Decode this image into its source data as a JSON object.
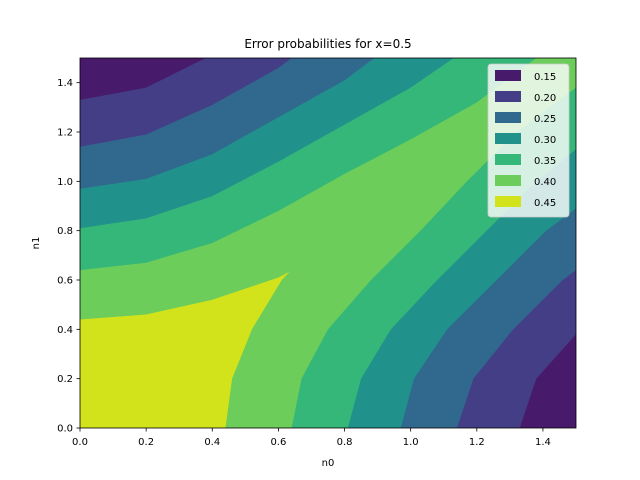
{
  "chart_data": {
    "type": "contourf",
    "title": "Error probabilities for x=0.5",
    "xlabel": "n0",
    "ylabel": "n1",
    "xlim": [
      0.0,
      1.5
    ],
    "ylim": [
      0.0,
      1.5
    ],
    "xticks": [
      "0.0",
      "0.2",
      "0.4",
      "0.6",
      "0.8",
      "1.0",
      "1.2",
      "1.4"
    ],
    "yticks": [
      "0.0",
      "0.2",
      "0.4",
      "0.6",
      "0.8",
      "1.0",
      "1.2",
      "1.4"
    ],
    "grid": false,
    "legend_position": "top-right",
    "levels": [
      {
        "label": "0.15",
        "color": "#481a6c"
      },
      {
        "label": "0.20",
        "color": "#433e85"
      },
      {
        "label": "0.25",
        "color": "#31688e"
      },
      {
        "label": "0.30",
        "color": "#21918c"
      },
      {
        "label": "0.35",
        "color": "#35b779"
      },
      {
        "label": "0.40",
        "color": "#6ccd5a"
      },
      {
        "label": "0.45",
        "color": "#d2e21b"
      }
    ],
    "contour_lines": [
      {
        "level": "0.45 boundary (upper-left)",
        "points": [
          [
            0.0,
            0.44
          ],
          [
            0.2,
            0.46
          ],
          [
            0.4,
            0.52
          ],
          [
            0.6,
            0.61
          ],
          [
            0.8,
            0.75
          ],
          [
            1.0,
            0.89
          ],
          [
            1.2,
            1.02
          ],
          [
            1.4,
            1.16
          ],
          [
            1.5,
            1.22
          ]
        ]
      },
      {
        "level": "0.40 boundary (upper-left)",
        "points": [
          [
            0.0,
            0.64
          ],
          [
            0.2,
            0.67
          ],
          [
            0.4,
            0.75
          ],
          [
            0.6,
            0.88
          ],
          [
            0.8,
            1.03
          ],
          [
            1.0,
            1.17
          ],
          [
            1.2,
            1.32
          ],
          [
            1.38,
            1.5
          ]
        ]
      },
      {
        "level": "0.35 boundary (upper-left)",
        "points": [
          [
            0.0,
            0.81
          ],
          [
            0.2,
            0.85
          ],
          [
            0.4,
            0.94
          ],
          [
            0.6,
            1.08
          ],
          [
            0.8,
            1.23
          ],
          [
            1.0,
            1.38
          ],
          [
            1.13,
            1.5
          ]
        ]
      },
      {
        "level": "0.30 boundary (upper-left)",
        "points": [
          [
            0.0,
            0.97
          ],
          [
            0.2,
            1.01
          ],
          [
            0.4,
            1.11
          ],
          [
            0.6,
            1.26
          ],
          [
            0.8,
            1.41
          ],
          [
            0.89,
            1.5
          ]
        ]
      },
      {
        "level": "0.25 boundary (upper-left)",
        "points": [
          [
            0.0,
            1.14
          ],
          [
            0.2,
            1.19
          ],
          [
            0.4,
            1.31
          ],
          [
            0.6,
            1.46
          ],
          [
            0.64,
            1.5
          ]
        ]
      },
      {
        "level": "0.20 boundary (upper-left)",
        "points": [
          [
            0.0,
            1.33
          ],
          [
            0.2,
            1.38
          ],
          [
            0.38,
            1.5
          ]
        ]
      },
      {
        "level": "0.45 boundary (lower-right)",
        "points": [
          [
            0.44,
            0.0
          ],
          [
            0.46,
            0.2
          ],
          [
            0.52,
            0.4
          ],
          [
            0.61,
            0.6
          ],
          [
            0.75,
            0.8
          ],
          [
            0.89,
            1.0
          ],
          [
            1.02,
            1.2
          ],
          [
            1.16,
            1.4
          ],
          [
            1.22,
            1.5
          ]
        ]
      },
      {
        "level": "0.40 boundary (lower-right)",
        "points": [
          [
            0.64,
            0.0
          ],
          [
            0.67,
            0.2
          ],
          [
            0.75,
            0.4
          ],
          [
            0.88,
            0.6
          ],
          [
            1.03,
            0.8
          ],
          [
            1.17,
            1.0
          ],
          [
            1.32,
            1.2
          ],
          [
            1.5,
            1.38
          ]
        ]
      },
      {
        "level": "0.35 boundary (lower-right)",
        "points": [
          [
            0.81,
            0.0
          ],
          [
            0.85,
            0.2
          ],
          [
            0.94,
            0.4
          ],
          [
            1.08,
            0.6
          ],
          [
            1.23,
            0.8
          ],
          [
            1.38,
            1.0
          ],
          [
            1.5,
            1.13
          ]
        ]
      },
      {
        "level": "0.30 boundary (lower-right)",
        "points": [
          [
            0.97,
            0.0
          ],
          [
            1.01,
            0.2
          ],
          [
            1.11,
            0.4
          ],
          [
            1.26,
            0.6
          ],
          [
            1.41,
            0.8
          ],
          [
            1.5,
            0.89
          ]
        ]
      },
      {
        "level": "0.25 boundary (lower-right)",
        "points": [
          [
            1.14,
            0.0
          ],
          [
            1.19,
            0.2
          ],
          [
            1.31,
            0.4
          ],
          [
            1.46,
            0.6
          ],
          [
            1.5,
            0.64
          ]
        ]
      },
      {
        "level": "0.20 boundary (lower-right)",
        "points": [
          [
            1.33,
            0.0
          ],
          [
            1.38,
            0.2
          ],
          [
            1.5,
            0.38
          ]
        ]
      }
    ]
  }
}
